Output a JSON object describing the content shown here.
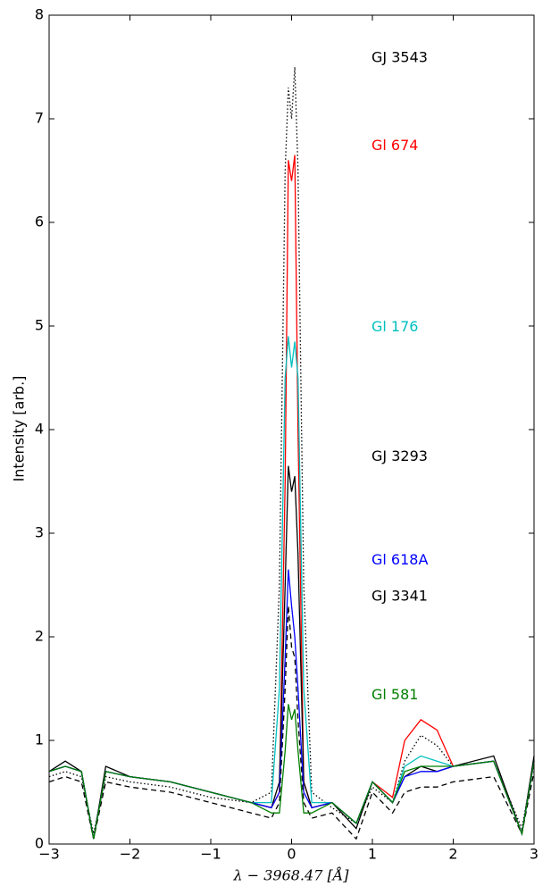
{
  "chart_data": {
    "type": "line",
    "x_label": "λ  −  3968.47  [Å]",
    "y_label": "Intensity [arb.]",
    "xlim": [
      -3,
      3
    ],
    "xticks": [
      {
        "value": -3,
        "label": "−3"
      },
      {
        "value": -2,
        "label": "−2"
      },
      {
        "value": -1,
        "label": "−1"
      },
      0,
      1,
      2,
      3
    ],
    "ylim": [
      0,
      8
    ],
    "yticks": [
      0,
      1,
      2,
      3,
      4,
      5,
      6,
      7,
      8
    ],
    "x": [
      -3,
      -2.8,
      -2.6,
      -2.45,
      -2.3,
      -2.0,
      -1.5,
      -1.0,
      -0.5,
      -0.25,
      -0.15,
      -0.08,
      -0.04,
      0,
      0.04,
      0.08,
      0.15,
      0.25,
      0.5,
      0.8,
      1.0,
      1.25,
      1.4,
      1.6,
      1.8,
      2.0,
      2.5,
      2.85,
      3.0
    ],
    "series": [
      {
        "name": "GJ 3543",
        "color": "#000000",
        "linestyle": "dotted",
        "values": [
          0.65,
          0.7,
          0.65,
          0.1,
          0.65,
          0.6,
          0.55,
          0.45,
          0.4,
          0.5,
          2.5,
          6.5,
          7.3,
          7.0,
          7.5,
          6.5,
          2.5,
          0.5,
          0.35,
          0.2,
          0.55,
          0.4,
          0.8,
          1.05,
          0.95,
          0.75,
          0.8,
          0.15,
          0.8
        ]
      },
      {
        "name": "Gl 674",
        "color": "#ff0000",
        "linestyle": "solid",
        "values": [
          0.7,
          0.75,
          0.7,
          0.05,
          0.7,
          0.65,
          0.6,
          0.5,
          0.4,
          0.35,
          0.5,
          3.5,
          6.6,
          6.4,
          6.65,
          4.0,
          0.6,
          0.35,
          0.4,
          0.2,
          0.6,
          0.45,
          1.0,
          1.2,
          1.1,
          0.75,
          0.8,
          0.1,
          0.8
        ]
      },
      {
        "name": "Gl 176",
        "color": "#00bfbf",
        "linestyle": "solid",
        "values": [
          0.7,
          0.75,
          0.7,
          0.05,
          0.7,
          0.65,
          0.6,
          0.5,
          0.4,
          0.4,
          1.5,
          4.5,
          4.9,
          4.6,
          4.85,
          4.5,
          1.5,
          0.4,
          0.4,
          0.2,
          0.6,
          0.4,
          0.75,
          0.85,
          0.8,
          0.75,
          0.8,
          0.1,
          0.8
        ]
      },
      {
        "name": "GJ 3293",
        "color": "#000000",
        "linestyle": "solid",
        "values": [
          0.7,
          0.8,
          0.7,
          0.05,
          0.75,
          0.65,
          0.6,
          0.5,
          0.4,
          0.35,
          0.6,
          2.5,
          3.65,
          3.4,
          3.55,
          2.8,
          0.6,
          0.35,
          0.4,
          0.15,
          0.6,
          0.4,
          0.65,
          0.75,
          0.7,
          0.75,
          0.85,
          0.1,
          0.85
        ]
      },
      {
        "name": "Gl 618A",
        "color": "#0000ff",
        "linestyle": "solid",
        "values": [
          0.7,
          0.75,
          0.7,
          0.05,
          0.7,
          0.65,
          0.6,
          0.5,
          0.4,
          0.35,
          0.5,
          1.8,
          2.65,
          2.3,
          2.0,
          1.5,
          0.5,
          0.35,
          0.4,
          0.2,
          0.6,
          0.4,
          0.65,
          0.7,
          0.7,
          0.75,
          0.8,
          0.1,
          0.8
        ]
      },
      {
        "name": "GJ 3341",
        "color": "#000000",
        "linestyle": "dashed",
        "values": [
          0.6,
          0.65,
          0.6,
          0.05,
          0.6,
          0.55,
          0.5,
          0.4,
          0.3,
          0.25,
          0.4,
          1.5,
          2.3,
          1.9,
          1.8,
          1.2,
          0.4,
          0.25,
          0.3,
          0.05,
          0.5,
          0.3,
          0.5,
          0.55,
          0.55,
          0.6,
          0.65,
          0.1,
          0.7
        ]
      },
      {
        "name": "Gl 581",
        "color": "#008000",
        "linestyle": "solid",
        "values": [
          0.7,
          0.75,
          0.7,
          0.05,
          0.7,
          0.65,
          0.6,
          0.5,
          0.4,
          0.3,
          0.3,
          0.9,
          1.35,
          1.2,
          1.3,
          0.9,
          0.3,
          0.3,
          0.4,
          0.2,
          0.6,
          0.4,
          0.7,
          0.75,
          0.75,
          0.75,
          0.8,
          0.1,
          0.8
        ]
      }
    ]
  }
}
